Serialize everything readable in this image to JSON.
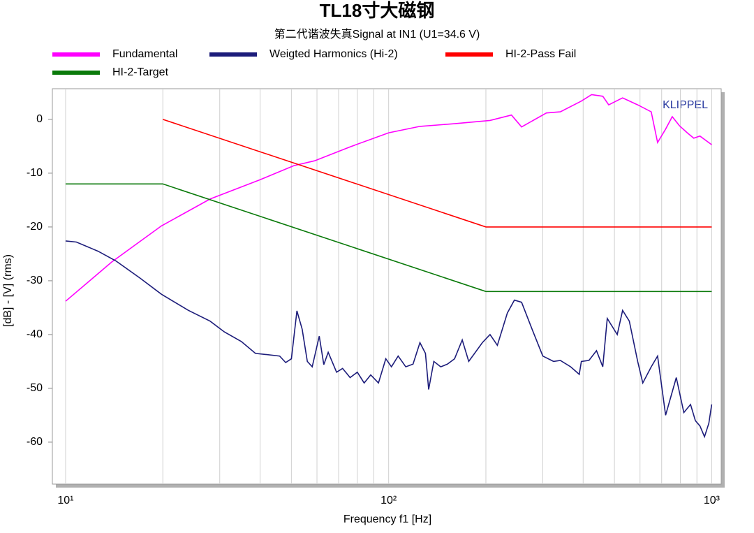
{
  "chart_data": {
    "type": "line",
    "title": "TL18寸大磁钢",
    "subtitle": "第二代谐波失真Signal at IN1  (U1=34.6 V)",
    "annotation": "KLIPPEL",
    "x_label": "Frequency f1  [Hz]",
    "y_label": "[dB] - [V]  (rms)",
    "xscale": "log",
    "xlim": [
      9.1,
      1070
    ],
    "ylim": [
      -67.8,
      5.7
    ],
    "xticks": [
      {
        "value": 10,
        "label": "10¹"
      },
      {
        "value": 100,
        "label": "10²"
      },
      {
        "value": 1000,
        "label": "10³"
      }
    ],
    "x_minor_ticks": [
      20,
      30,
      40,
      50,
      60,
      70,
      80,
      90,
      200,
      300,
      400,
      500,
      600,
      700,
      800,
      900
    ],
    "yticks": [
      0,
      -10,
      -20,
      -30,
      -40,
      -50,
      -60
    ],
    "grid": true,
    "series": [
      {
        "name": "Fundamental",
        "color": "#ff00ff",
        "x": [
          10,
          13.9,
          19.8,
          28,
          39.7,
          50.9,
          59,
          76,
          100,
          125,
          160,
          206,
          240,
          258,
          308,
          340,
          395,
          425,
          460,
          480,
          530,
          590,
          650,
          680,
          720,
          755,
          795,
          840,
          880,
          920,
          1000
        ],
        "values": [
          -33.8,
          -26.5,
          -19.8,
          -14.8,
          -11.3,
          -8.6,
          -7.7,
          -5.1,
          -2.5,
          -1.3,
          -0.8,
          -0.2,
          0.8,
          -1.4,
          1.2,
          1.4,
          3.4,
          4.6,
          4.3,
          2.7,
          4.0,
          2.7,
          1.4,
          -4.3,
          -1.8,
          0.5,
          -1.2,
          -2.5,
          -3.5,
          -3.1,
          -4.7
        ]
      },
      {
        "name": "Weigted Harmonics (Hi-2)",
        "color": "#1c1c7a",
        "x": [
          10,
          10.8,
          12.6,
          14.3,
          17,
          19.8,
          24,
          28,
          31,
          35,
          38.7,
          41.6,
          46,
          48,
          50,
          52,
          54,
          56,
          58,
          61,
          63,
          65,
          69,
          72,
          76,
          80,
          84,
          88,
          93,
          98,
          102,
          107,
          113,
          119,
          125,
          130,
          133,
          138,
          145,
          152,
          160,
          169,
          177,
          195,
          206,
          217,
          233,
          245,
          258,
          278,
          300,
          324,
          340,
          366,
          389,
          395,
          417,
          440,
          460,
          475,
          510,
          530,
          556,
          590,
          612,
          650,
          680,
          720,
          777,
          820,
          860,
          890,
          920,
          950,
          980,
          1000
        ],
        "values": [
          -22.6,
          -22.8,
          -24.5,
          -26.3,
          -29.5,
          -32.5,
          -35.5,
          -37.5,
          -39.5,
          -41.3,
          -43.5,
          -43.7,
          -44.0,
          -45.2,
          -44.5,
          -35.6,
          -39,
          -45,
          -46,
          -40.3,
          -45.6,
          -43.3,
          -47,
          -46.3,
          -48,
          -47,
          -49,
          -47.5,
          -49,
          -44.5,
          -46,
          -44,
          -46,
          -45.5,
          -41.5,
          -43.5,
          -50.2,
          -45,
          -46,
          -45.5,
          -44.5,
          -41,
          -45,
          -41.5,
          -40,
          -42,
          -36,
          -33.6,
          -34,
          -39,
          -44,
          -45,
          -44.8,
          -46,
          -47.4,
          -45,
          -44.8,
          -43,
          -46,
          -37,
          -40,
          -35.5,
          -37.5,
          -45,
          -49,
          -46,
          -44,
          -55,
          -48,
          -54.5,
          -53,
          -56,
          -57,
          -59,
          -56.5,
          -53
        ]
      },
      {
        "name": "HI-2-Pass Fail",
        "color": "#ff0000",
        "x": [
          20,
          200,
          1000
        ],
        "values": [
          0,
          -20,
          -20
        ]
      },
      {
        "name": "HI-2-Target",
        "color": "#0a7a0a",
        "x": [
          10,
          20,
          200,
          1000
        ],
        "values": [
          -12,
          -12,
          -32,
          -32
        ]
      }
    ]
  }
}
